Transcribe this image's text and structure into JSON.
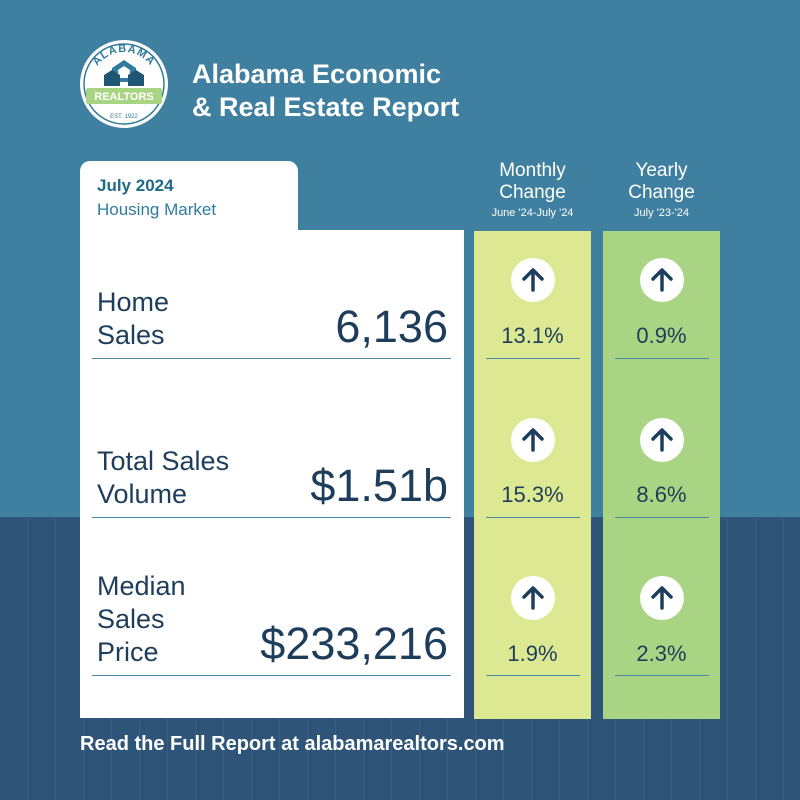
{
  "header": {
    "logo": {
      "top_text": "ALABAMA",
      "ribbon": "REALTORS",
      "est": "EST. 1922"
    },
    "title_line1": "Alabama Economic",
    "title_line2": "& Real Estate Report"
  },
  "period": {
    "month": "July 2024",
    "subtitle": "Housing Market"
  },
  "columns": {
    "monthly": {
      "title1": "Monthly",
      "title2": "Change",
      "range": "June '24-July '24"
    },
    "yearly": {
      "title1": "Yearly",
      "title2": "Change",
      "range": "July '23-'24"
    }
  },
  "metrics": [
    {
      "label_lines": [
        "Home",
        "Sales"
      ],
      "value": "6,136",
      "monthly": "13.1%",
      "yearly": "0.9%",
      "monthly_dir": "up",
      "yearly_dir": "up"
    },
    {
      "label_lines": [
        "Total Sales",
        "Volume"
      ],
      "value": "$1.51b",
      "monthly": "15.3%",
      "yearly": "8.6%",
      "monthly_dir": "up",
      "yearly_dir": "up"
    },
    {
      "label_lines": [
        "Median",
        "Sales",
        "Price"
      ],
      "value": "$233,216",
      "monthly": "1.9%",
      "yearly": "2.3%",
      "monthly_dir": "up",
      "yearly_dir": "up"
    }
  ],
  "footer": {
    "text": "Read the Full Report at alabamarealtors.com"
  },
  "colors": {
    "background_top": "#3f7f9f",
    "background_bottom": "#2e5578",
    "monthly_column": "#dce992",
    "yearly_column": "#a9d483",
    "text_dark": "#1e3d5a",
    "accent": "#1f6a86"
  }
}
